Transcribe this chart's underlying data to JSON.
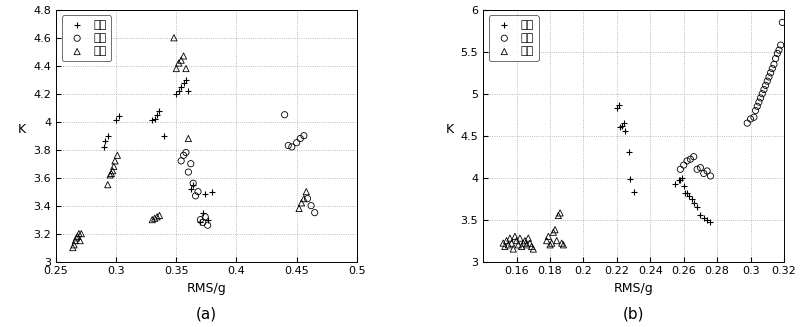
{
  "plot_a": {
    "title": "(a)",
    "xlabel": "RMS/g",
    "ylabel": "K",
    "xlim": [
      0.25,
      0.5
    ],
    "ylim": [
      3.0,
      4.8
    ],
    "xticks": [
      0.25,
      0.3,
      0.35,
      0.4,
      0.45,
      0.5
    ],
    "yticks": [
      3.0,
      3.2,
      3.4,
      3.6,
      3.8,
      4.0,
      4.2,
      4.4,
      4.6,
      4.8
    ],
    "crack_rms": [
      0.29,
      0.291,
      0.293,
      0.3,
      0.302,
      0.33,
      0.332,
      0.334,
      0.336,
      0.34,
      0.35,
      0.352,
      0.354,
      0.356,
      0.358,
      0.36,
      0.362,
      0.364,
      0.37,
      0.372,
      0.374,
      0.376,
      0.38
    ],
    "crack_k": [
      3.82,
      3.86,
      3.9,
      4.01,
      4.04,
      4.01,
      4.02,
      4.05,
      4.08,
      3.9,
      4.2,
      4.22,
      4.25,
      4.28,
      4.3,
      4.22,
      3.52,
      3.55,
      3.28,
      3.35,
      3.48,
      3.3,
      3.5
    ],
    "wear_rms": [
      0.354,
      0.356,
      0.358,
      0.36,
      0.362,
      0.364,
      0.366,
      0.368,
      0.37,
      0.372,
      0.374,
      0.376,
      0.44,
      0.443,
      0.446,
      0.45,
      0.453,
      0.456,
      0.459,
      0.462,
      0.465
    ],
    "wear_k": [
      3.72,
      3.76,
      3.78,
      3.64,
      3.7,
      3.56,
      3.47,
      3.5,
      3.3,
      3.28,
      3.32,
      3.26,
      4.05,
      3.83,
      3.82,
      3.85,
      3.88,
      3.9,
      3.45,
      3.4,
      3.35
    ],
    "normal_rms": [
      0.264,
      0.265,
      0.266,
      0.267,
      0.268,
      0.269,
      0.27,
      0.271,
      0.293,
      0.295,
      0.296,
      0.297,
      0.298,
      0.299,
      0.301,
      0.33,
      0.332,
      0.334,
      0.336,
      0.348,
      0.35,
      0.352,
      0.354,
      0.356,
      0.358,
      0.36,
      0.452,
      0.454,
      0.456,
      0.458
    ],
    "normal_k": [
      3.1,
      3.12,
      3.15,
      3.17,
      3.18,
      3.2,
      3.15,
      3.2,
      3.55,
      3.62,
      3.63,
      3.65,
      3.68,
      3.72,
      3.76,
      3.3,
      3.31,
      3.32,
      3.33,
      4.6,
      4.38,
      4.42,
      4.44,
      4.47,
      4.38,
      3.88,
      3.38,
      3.42,
      3.45,
      3.5
    ],
    "legend_crack": "裂纹",
    "legend_wear": "磨损",
    "legend_normal": "正常"
  },
  "plot_b": {
    "title": "(b)",
    "xlabel": "RMS/g",
    "ylabel": "K",
    "xlim": [
      0.14,
      0.32
    ],
    "ylim": [
      3.0,
      6.0
    ],
    "xticks": [
      0.16,
      0.18,
      0.2,
      0.22,
      0.24,
      0.26,
      0.28,
      0.3,
      0.32
    ],
    "yticks": [
      3.0,
      3.5,
      4.0,
      4.5,
      5.0,
      5.5,
      6.0
    ],
    "crack_rms": [
      0.22,
      0.221,
      0.222,
      0.223,
      0.224,
      0.225,
      0.227,
      0.228,
      0.23,
      0.255,
      0.257,
      0.258,
      0.259,
      0.26,
      0.261,
      0.262,
      0.263,
      0.265,
      0.266,
      0.268,
      0.27,
      0.272,
      0.274,
      0.276
    ],
    "crack_k": [
      4.83,
      4.86,
      4.6,
      4.62,
      4.65,
      4.56,
      4.3,
      3.98,
      3.83,
      3.92,
      3.97,
      3.97,
      4.0,
      3.9,
      3.82,
      3.82,
      3.78,
      3.75,
      3.7,
      3.65,
      3.55,
      3.52,
      3.5,
      3.47
    ],
    "wear_rms": [
      0.258,
      0.26,
      0.262,
      0.264,
      0.266,
      0.268,
      0.27,
      0.272,
      0.274,
      0.276,
      0.298,
      0.3,
      0.302,
      0.303,
      0.304,
      0.305,
      0.306,
      0.307,
      0.308,
      0.309,
      0.31,
      0.311,
      0.312,
      0.313,
      0.314,
      0.315,
      0.316,
      0.317,
      0.318,
      0.319
    ],
    "wear_k": [
      4.1,
      4.15,
      4.2,
      4.22,
      4.25,
      4.1,
      4.12,
      4.05,
      4.08,
      4.02,
      4.65,
      4.7,
      4.72,
      4.8,
      4.85,
      4.9,
      4.95,
      5.0,
      5.05,
      5.1,
      5.15,
      5.2,
      5.25,
      5.3,
      5.35,
      5.42,
      5.48,
      5.52,
      5.58,
      5.85
    ],
    "normal_rms": [
      0.152,
      0.153,
      0.154,
      0.155,
      0.156,
      0.157,
      0.158,
      0.159,
      0.16,
      0.161,
      0.162,
      0.163,
      0.164,
      0.165,
      0.166,
      0.167,
      0.168,
      0.169,
      0.17,
      0.178,
      0.179,
      0.18,
      0.181,
      0.182,
      0.183,
      0.184,
      0.185,
      0.186,
      0.187,
      0.188
    ],
    "normal_k": [
      3.22,
      3.18,
      3.25,
      3.2,
      3.28,
      3.22,
      3.15,
      3.3,
      3.25,
      3.2,
      3.28,
      3.18,
      3.22,
      3.25,
      3.2,
      3.28,
      3.22,
      3.18,
      3.15,
      3.25,
      3.3,
      3.2,
      3.22,
      3.35,
      3.38,
      3.25,
      3.55,
      3.58,
      3.22,
      3.2
    ],
    "legend_crack": "裂纹",
    "legend_wear": "磨损",
    "legend_normal": "正常"
  },
  "font_size": 8,
  "tick_fontsize": 8
}
